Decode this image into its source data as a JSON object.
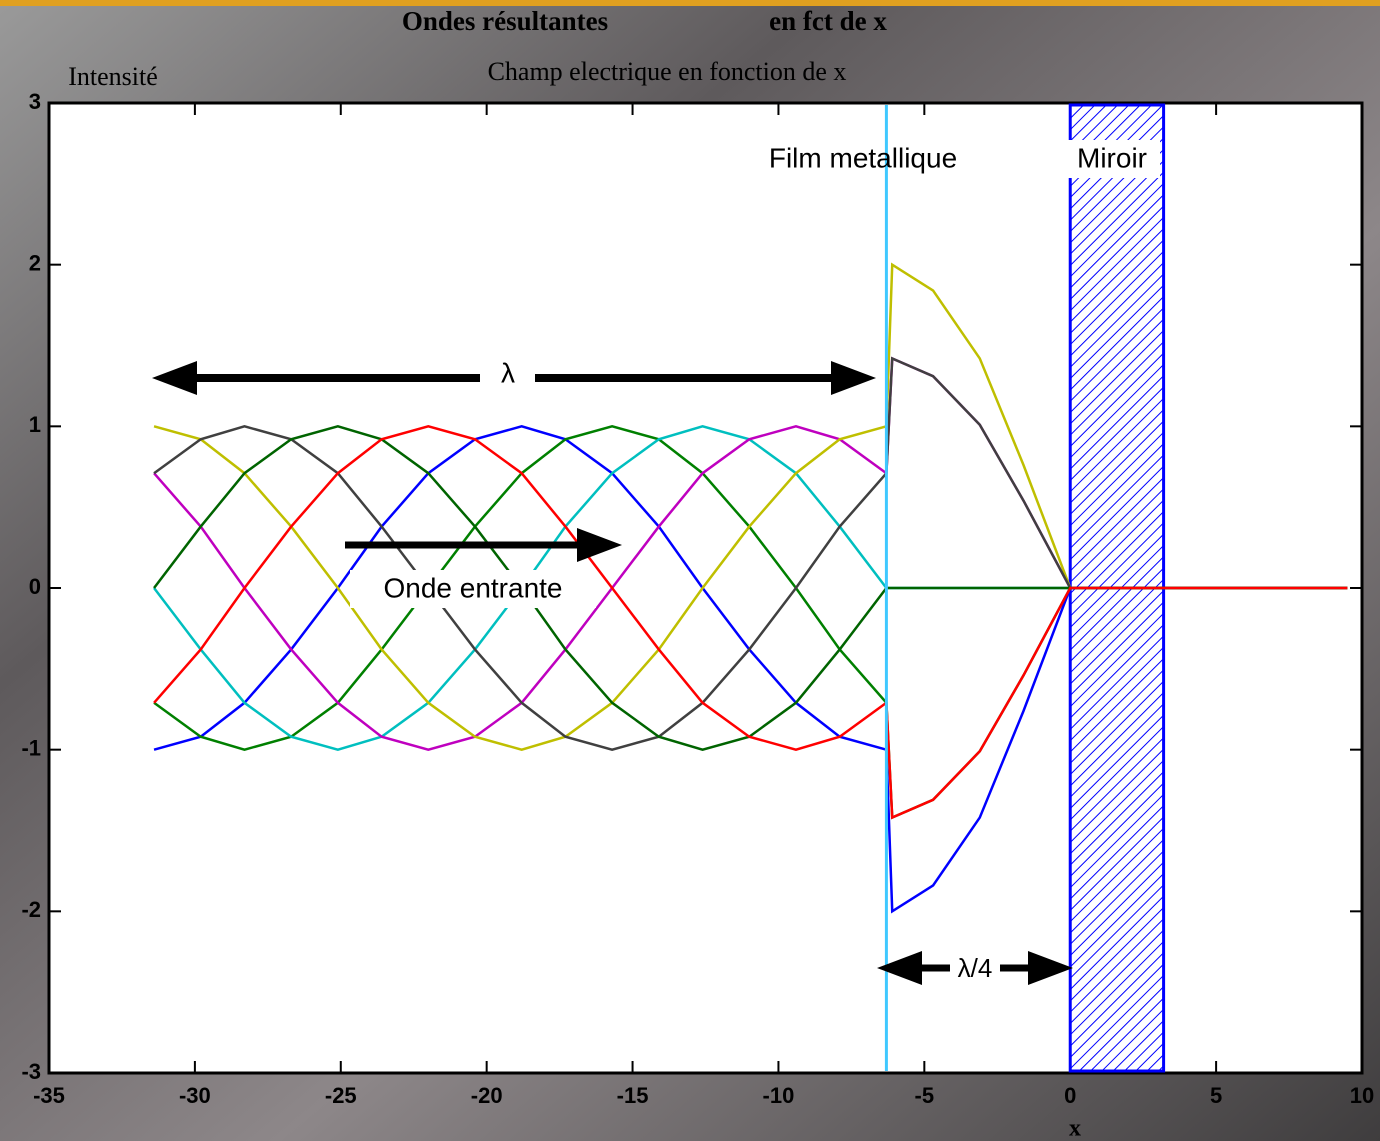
{
  "chart_data": {
    "type": "line",
    "title_parts": [
      "Ondes résultantes",
      "en fct de x"
    ],
    "subtitle": "Champ electrique en fonction de x",
    "ylabel": "Intensité",
    "xlabel": "x",
    "annotations": [
      "Film metallique",
      "Miroir",
      "λ",
      "Onde entrante",
      "λ/4"
    ],
    "film_x": -6.3,
    "mirror_xlim": [
      0,
      3.2
    ],
    "film_color": "#3fc8ff",
    "mirror_color": "#0000ff",
    "xlim": [
      -35,
      10
    ],
    "xticks": [
      -35,
      -30,
      -25,
      -20,
      -15,
      -10,
      -5,
      0,
      5,
      10
    ],
    "ylim": [
      -3,
      3
    ],
    "yticks": [
      -3,
      -2,
      -1,
      0,
      1,
      2,
      3
    ],
    "x": [
      -31.4,
      -29.8,
      -28.3,
      -26.7,
      -25.1,
      -23.6,
      -22,
      -20.4,
      -18.8,
      -17.3,
      -15.7,
      -14.1,
      -12.6,
      -11,
      -9.4,
      -7.9,
      -6.3,
      -6.1,
      -4.7,
      -3.1,
      -1.6,
      0,
      9.5
    ],
    "series": [
      {
        "color": "#0000ff",
        "values": [
          -1,
          -0.92,
          -0.71,
          -0.38,
          0,
          0.38,
          0.71,
          0.92,
          1,
          0.92,
          0.71,
          0.38,
          0,
          -0.38,
          -0.71,
          -0.92,
          -1,
          -2,
          -1.84,
          -1.42,
          -0.76,
          0,
          0
        ]
      },
      {
        "color": "#008000",
        "values": [
          -0.71,
          -0.92,
          -1,
          -0.92,
          -0.71,
          -0.38,
          0,
          0.38,
          0.71,
          0.92,
          1,
          0.92,
          0.71,
          0.38,
          0,
          -0.38,
          -0.71,
          -1.42,
          -1.31,
          -1.01,
          -0.54,
          0,
          0
        ]
      },
      {
        "color": "#00bfbf",
        "values": [
          0,
          -0.38,
          -0.71,
          -0.92,
          -1,
          -0.92,
          -0.71,
          -0.38,
          0,
          0.38,
          0.71,
          0.92,
          1,
          0.92,
          0.71,
          0.38,
          0,
          0,
          0,
          0,
          0,
          0,
          0
        ]
      },
      {
        "color": "#bf00bf",
        "values": [
          0.71,
          0.38,
          0,
          -0.38,
          -0.71,
          -0.92,
          -1,
          -0.92,
          -0.71,
          -0.38,
          0,
          0.38,
          0.71,
          0.92,
          1,
          0.92,
          0.71,
          1.42,
          1.31,
          1.01,
          0.54,
          0,
          0
        ]
      },
      {
        "color": "#bfbf00",
        "values": [
          1,
          0.92,
          0.71,
          0.38,
          0,
          -0.38,
          -0.71,
          -0.92,
          -1,
          -0.92,
          -0.71,
          -0.38,
          0,
          0.38,
          0.71,
          0.92,
          1,
          2,
          1.84,
          1.42,
          0.76,
          0,
          0
        ]
      },
      {
        "color": "#404040",
        "values": [
          0.71,
          0.92,
          1,
          0.92,
          0.71,
          0.38,
          0,
          -0.38,
          -0.71,
          -0.92,
          -1,
          -0.92,
          -0.71,
          -0.38,
          0,
          0.38,
          0.71,
          1.42,
          1.31,
          1.01,
          0.54,
          0,
          0
        ]
      },
      {
        "color": "#006400",
        "values": [
          0,
          0.38,
          0.71,
          0.92,
          1,
          0.92,
          0.71,
          0.38,
          0,
          -0.38,
          -0.71,
          -0.92,
          -1,
          -0.92,
          -0.71,
          -0.38,
          0,
          0,
          0,
          0,
          0,
          0,
          0
        ]
      },
      {
        "color": "#ff0000",
        "values": [
          -0.71,
          -0.38,
          0,
          0.38,
          0.71,
          0.92,
          1,
          0.92,
          0.71,
          0.38,
          0,
          -0.38,
          -0.71,
          -0.92,
          -1,
          -0.92,
          -0.71,
          -1.42,
          -1.31,
          -1.01,
          -0.54,
          0,
          0
        ]
      }
    ]
  }
}
